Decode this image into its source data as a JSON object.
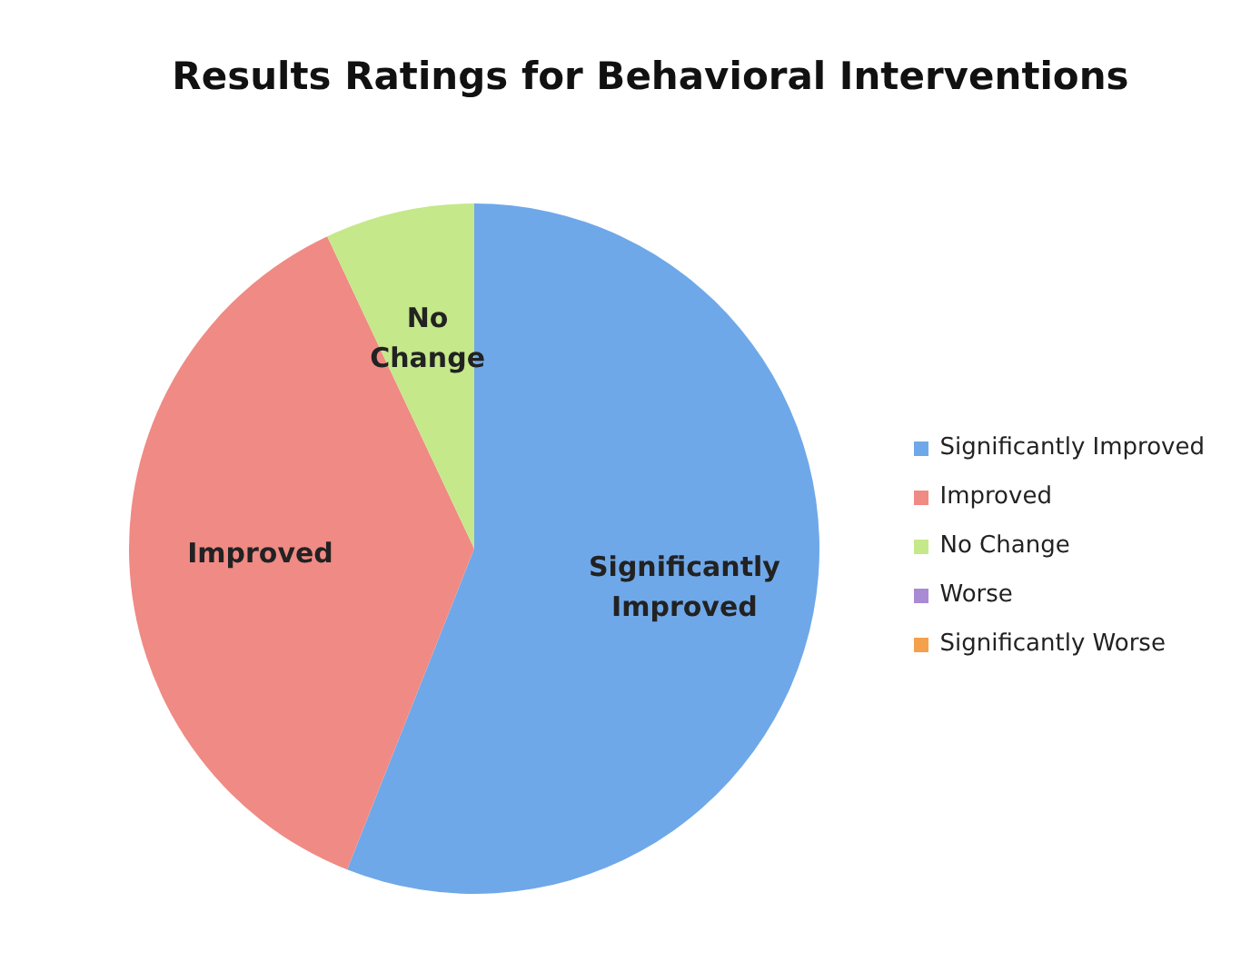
{
  "chart_data": {
    "type": "pie",
    "title": "Results Ratings for Behavioral Interventions",
    "categories": [
      "Significantly Improved",
      "Improved",
      "No Change",
      "Worse",
      "Significantly Worse"
    ],
    "values": [
      56,
      37,
      7,
      0,
      0
    ],
    "colors": [
      "#6fa8e8",
      "#f08a84",
      "#c5e88a",
      "#a98ad4",
      "#f5a04c"
    ],
    "legend": "right"
  }
}
